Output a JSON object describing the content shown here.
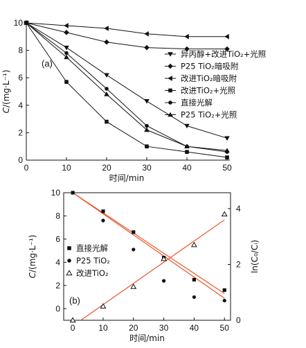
{
  "chart_data": [
    {
      "type": "line",
      "panel_label": "(a)",
      "xlabel": "时间/min",
      "ylabel": "C/(mg·L⁻¹)",
      "xlim": [
        0,
        50
      ],
      "ylim": [
        0,
        10
      ],
      "x_ticks": [
        0,
        10,
        20,
        30,
        40,
        50
      ],
      "y_ticks": [
        0,
        2,
        4,
        6,
        8,
        10
      ],
      "legend_position": "right",
      "x": [
        0,
        10,
        20,
        30,
        40,
        50
      ],
      "series": [
        {
          "name": "异丙醇+改进TiO₂+光照",
          "marker": "triangle-down",
          "values": [
            10,
            8.2,
            6.2,
            4.3,
            2.5,
            1.6
          ]
        },
        {
          "name": "P25 TiO₂暗吸附",
          "marker": "diamond",
          "values": [
            10,
            9.3,
            8.6,
            8.2,
            8.1,
            8.1
          ]
        },
        {
          "name": "改进TiO₂暗吸附",
          "marker": "triangle-left",
          "values": [
            10,
            9.8,
            9.6,
            9.2,
            9.0,
            9.0
          ]
        },
        {
          "name": "改进TiO₂+光照",
          "marker": "square",
          "values": [
            10,
            5.7,
            2.8,
            1.0,
            0.6,
            0.2
          ]
        },
        {
          "name": "直接光解",
          "marker": "circle",
          "values": [
            10,
            7.8,
            5.2,
            2.5,
            1.0,
            0.6
          ]
        },
        {
          "name": "P25 TiO₂+光照",
          "marker": "triangle-up",
          "values": [
            10,
            7.5,
            4.8,
            2.2,
            1.0,
            0.7
          ]
        }
      ]
    },
    {
      "type": "scatter",
      "panel_label": "(b)",
      "xlabel": "时间/min",
      "ylabel": "C/(mg·L⁻¹)",
      "ylabel_right": "ln(C₀/Cᵢ)",
      "xlim": [
        -3,
        52
      ],
      "ylim": [
        -1,
        10
      ],
      "ylim_right": [
        0,
        4.57
      ],
      "x_ticks": [
        0,
        10,
        20,
        30,
        40,
        50
      ],
      "y_ticks": [
        0,
        2,
        4,
        6,
        8,
        10
      ],
      "y_ticks_right": [
        0,
        2,
        4
      ],
      "legend_position": "left",
      "x": [
        0,
        10,
        20,
        30,
        40,
        50
      ],
      "series": [
        {
          "name": "直接光解",
          "marker": "square",
          "axis": "left",
          "values": [
            10,
            8.4,
            6.6,
            4.4,
            2.5,
            1.6
          ]
        },
        {
          "name": "P25 TiO₂",
          "marker": "circle",
          "axis": "left",
          "values": [
            10,
            7.6,
            5.1,
            2.4,
            1.0,
            0.7
          ]
        },
        {
          "name": "改进TiO₂",
          "marker": "triangle-open",
          "axis": "right",
          "values": [
            0,
            0.5,
            1.2,
            2.2,
            2.7,
            3.8
          ]
        }
      ],
      "fit_lines": [
        {
          "axis": "left",
          "x": [
            0,
            50
          ],
          "y": [
            10,
            0.9
          ],
          "color": "#e8542a"
        },
        {
          "axis": "left",
          "x": [
            0,
            50
          ],
          "y": [
            10,
            1.3
          ],
          "color": "#e8542a"
        },
        {
          "axis": "right",
          "x": [
            0,
            50
          ],
          "y": [
            -0.2,
            3.6
          ],
          "color": "#e8542a"
        }
      ]
    }
  ]
}
